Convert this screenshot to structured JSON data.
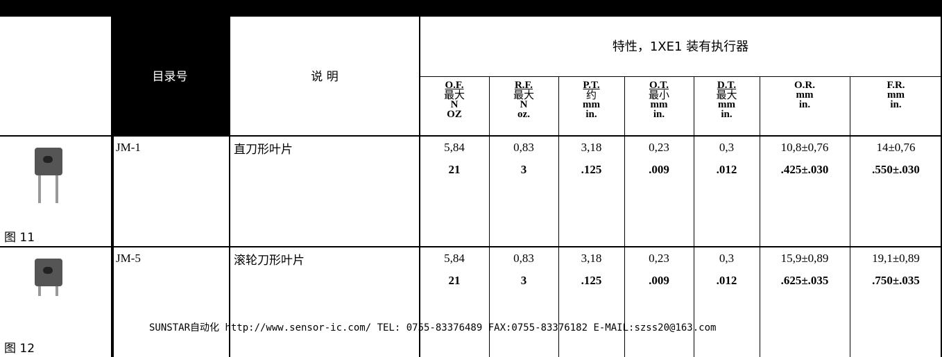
{
  "header": {
    "catalog": "目录号",
    "description": "说 明",
    "group": "特性，1XE1 装有执行器",
    "columns": [
      [
        "O.F.",
        "最大",
        "N",
        "OZ"
      ],
      [
        "R.F.",
        "最大",
        "N",
        "oz."
      ],
      [
        "P.T.",
        "约",
        "mm",
        "in."
      ],
      [
        "O.T.",
        "最小",
        "mm",
        "in."
      ],
      [
        "D.T.",
        "最大",
        "mm",
        "in."
      ],
      [
        "O.R.",
        "mm",
        "in."
      ],
      [
        "F.R.",
        "mm",
        "in."
      ]
    ]
  },
  "rows": [
    {
      "figure": "图 11",
      "catalog": "JM-1",
      "description": "直刀形叶片",
      "values": [
        [
          "5,84",
          "21"
        ],
        [
          "0,83",
          "3"
        ],
        [
          "3,18",
          ".125"
        ],
        [
          "0,23",
          ".009"
        ],
        [
          "0,3",
          ".012"
        ],
        [
          "10,8±0,76",
          ".425±.030"
        ],
        [
          "14±0,76",
          ".550±.030"
        ]
      ]
    },
    {
      "figure": "图 12",
      "catalog": "JM-5",
      "description": "滚轮刀形叶片",
      "values": [
        [
          "5,84",
          "21"
        ],
        [
          "0,83",
          "3"
        ],
        [
          "3,18",
          ".125"
        ],
        [
          "0,23",
          ".009"
        ],
        [
          "0,3",
          ".012"
        ],
        [
          "15,9±0,89",
          ".625±.035"
        ],
        [
          "19,1±0,89",
          ".750±.035"
        ]
      ]
    }
  ],
  "watermark": "SUNSTAR自动化 http://www.sensor-ic.com/ TEL: 0755-83376489 FAX:0755-83376182 E-MAIL:szss20@163.com"
}
